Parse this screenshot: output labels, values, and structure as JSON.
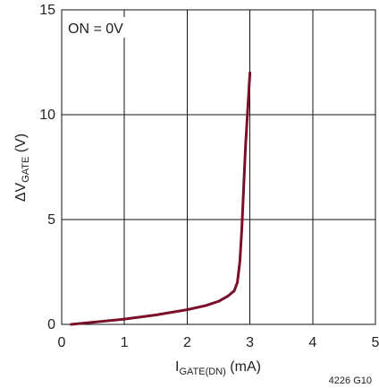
{
  "chart_data": {
    "type": "line",
    "xlim": [
      0,
      5
    ],
    "ylim": [
      0,
      15
    ],
    "x_ticks": [
      "0",
      "1",
      "2",
      "3",
      "4",
      "5"
    ],
    "y_ticks": [
      "0",
      "5",
      "10",
      "15"
    ],
    "grid": true,
    "xlabel": {
      "main": "I",
      "subscript": "GATE(DN)",
      "unit": " (mA)"
    },
    "ylabel": {
      "main": "ΔV",
      "subscript": "GATE",
      "unit": " (V)"
    },
    "annotation": "ON = 0V",
    "figure_code": "4226 G10",
    "series": [
      {
        "color": "#7a0f2a",
        "x": [
          0.15,
          0.5,
          1.0,
          1.5,
          2.0,
          2.3,
          2.5,
          2.65,
          2.75,
          2.8,
          2.84,
          2.87,
          2.9,
          2.93,
          2.97,
          3.0
        ],
        "y": [
          0.0,
          0.1,
          0.25,
          0.45,
          0.7,
          0.9,
          1.1,
          1.35,
          1.6,
          2.0,
          3.0,
          4.5,
          6.5,
          8.5,
          10.5,
          12.0
        ]
      }
    ]
  }
}
